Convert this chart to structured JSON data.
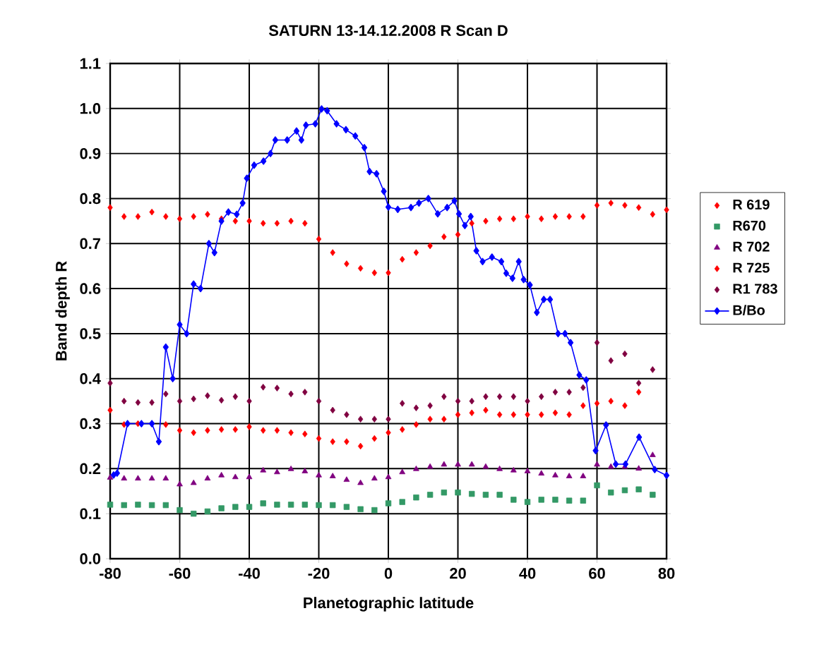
{
  "chart_data": {
    "type": "scatter",
    "title": "SATURN 13-14.12.2008 R Scan D",
    "xlabel": "Planetographic latitude",
    "ylabel": "Band depth  R",
    "x": [
      -80,
      -76,
      -72,
      -68,
      -64,
      -60,
      -56,
      -52,
      -48,
      -44,
      -40,
      -36,
      -32,
      -28,
      -24,
      -20,
      -16,
      -12,
      -8,
      -4,
      0,
      4,
      8,
      12,
      16,
      20,
      24,
      28,
      32,
      36,
      40,
      44,
      48,
      52,
      56,
      60,
      64,
      68,
      72,
      76,
      80
    ],
    "series": [
      {
        "name": "R 619",
        "color": "#ff0000",
        "marker": "diamond",
        "values": [
          0.78,
          0.76,
          0.76,
          0.77,
          0.76,
          0.755,
          0.76,
          0.765,
          0.755,
          0.75,
          0.75,
          0.745,
          0.745,
          0.75,
          0.745,
          0.71,
          0.68,
          0.655,
          0.645,
          0.635,
          0.635,
          0.665,
          0.68,
          0.695,
          0.715,
          0.72,
          0.745,
          0.75,
          0.755,
          0.755,
          0.76,
          0.755,
          0.76,
          0.76,
          0.76,
          0.785,
          0.79,
          0.785,
          0.78,
          0.765,
          0.775
        ]
      },
      {
        "name": "R670",
        "color": "#339966",
        "marker": "square",
        "values": [
          0.12,
          0.119,
          0.12,
          0.119,
          0.119,
          0.108,
          0.1,
          0.105,
          0.112,
          0.115,
          0.115,
          0.123,
          0.12,
          0.12,
          0.12,
          0.119,
          0.119,
          0.115,
          0.11,
          0.108,
          0.123,
          0.126,
          0.136,
          0.142,
          0.147,
          0.147,
          0.144,
          0.142,
          0.142,
          0.131,
          0.126,
          0.131,
          0.131,
          0.129,
          0.129,
          0.163,
          0.147,
          0.152,
          0.154,
          0.142,
          null
        ]
      },
      {
        "name": "R 702",
        "color": "#800080",
        "marker": "triangle",
        "values": [
          0.18,
          0.178,
          0.178,
          0.178,
          0.178,
          0.165,
          0.168,
          0.178,
          0.185,
          0.181,
          0.181,
          0.196,
          0.192,
          0.199,
          0.194,
          0.185,
          0.183,
          0.175,
          0.168,
          0.178,
          0.181,
          0.192,
          0.199,
          0.204,
          0.209,
          0.209,
          0.209,
          0.204,
          0.199,
          0.196,
          0.194,
          0.189,
          0.185,
          0.183,
          0.183,
          0.209,
          0.204,
          0.204,
          0.2,
          0.23,
          null
        ]
      },
      {
        "name": "R 725",
        "color": "#ff0000",
        "marker": "diamond",
        "values": [
          0.33,
          0.298,
          0.3,
          null,
          0.298,
          0.285,
          0.28,
          0.285,
          0.287,
          0.287,
          0.293,
          0.285,
          0.285,
          0.28,
          0.277,
          0.267,
          0.26,
          0.26,
          0.25,
          0.267,
          0.28,
          0.287,
          0.298,
          0.31,
          0.31,
          0.32,
          0.324,
          0.33,
          0.32,
          0.32,
          0.32,
          0.32,
          0.324,
          0.32,
          0.34,
          0.345,
          0.35,
          0.34,
          0.37,
          null,
          null
        ]
      },
      {
        "name": "R1 783",
        "color": "#800040",
        "marker": "diamond",
        "values": [
          0.39,
          0.35,
          0.347,
          0.347,
          0.366,
          0.35,
          0.355,
          0.362,
          0.352,
          0.36,
          0.35,
          0.381,
          0.379,
          0.366,
          0.37,
          0.35,
          0.33,
          0.32,
          0.31,
          0.31,
          0.31,
          0.345,
          0.335,
          0.34,
          0.36,
          0.35,
          0.35,
          0.36,
          0.36,
          0.36,
          0.35,
          0.36,
          0.37,
          0.37,
          0.38,
          0.48,
          0.44,
          0.455,
          0.39,
          0.42,
          null
        ]
      },
      {
        "name": "B/Bo",
        "type": "line",
        "color": "#0000ff",
        "marker": "diamond",
        "x": [
          -79,
          -78,
          -75,
          -71,
          -68,
          -66,
          -64,
          -62,
          -60,
          -58,
          -56,
          -54,
          -51.6,
          -50,
          -48,
          -46,
          -43.6,
          -41.9,
          -40.7,
          -38.6,
          -35.9,
          -33.9,
          -32.5,
          -29.1,
          -26.4,
          -25,
          -23.7,
          -21,
          -19.2,
          -17.6,
          -14.9,
          -12.2,
          -9.5,
          -6.9,
          -5.4,
          -3.4,
          -1.3,
          0,
          2.7,
          6.5,
          8.8,
          11.5,
          14.2,
          16.9,
          19,
          20.3,
          22,
          23.7,
          25.3,
          27.1,
          29.8,
          32.5,
          33.9,
          35.7,
          37.5,
          38.9,
          40.7,
          42.7,
          44.7,
          46.5,
          48.8,
          50.8,
          52.4,
          54.9,
          56.9,
          59.6,
          62.6,
          65.4,
          68.2,
          72.1,
          76.6,
          80
        ],
        "values": [
          0.186,
          0.19,
          0.3,
          0.3,
          0.3,
          0.26,
          0.47,
          0.4,
          0.52,
          0.5,
          0.61,
          0.6,
          0.7,
          0.68,
          0.75,
          0.77,
          0.765,
          0.79,
          0.845,
          0.874,
          0.883,
          0.9,
          0.93,
          0.93,
          0.95,
          0.93,
          0.963,
          0.966,
          0.999,
          0.995,
          0.966,
          0.953,
          0.939,
          0.913,
          0.86,
          0.855,
          0.816,
          0.781,
          0.776,
          0.78,
          0.79,
          0.8,
          0.766,
          0.78,
          0.795,
          0.766,
          0.74,
          0.76,
          0.684,
          0.66,
          0.67,
          0.66,
          0.634,
          0.623,
          0.66,
          0.62,
          0.608,
          0.547,
          0.576,
          0.576,
          0.5,
          0.5,
          0.48,
          0.408,
          0.397,
          0.24,
          0.297,
          0.21,
          0.21,
          0.27,
          0.198,
          0.185
        ]
      }
    ],
    "xlim": [
      -80,
      80
    ],
    "ylim": [
      0,
      1.1
    ],
    "xticks": [
      -80,
      -60,
      -40,
      -20,
      0,
      20,
      40,
      60,
      80
    ],
    "yticks": [
      {
        "value": 0,
        "label": "0.0"
      },
      {
        "value": 0.1,
        "label": "0.1"
      },
      {
        "value": 0.2,
        "label": "0.2"
      },
      {
        "value": 0.3,
        "label": "0.3"
      },
      {
        "value": 0.4,
        "label": "0.4"
      },
      {
        "value": 0.5,
        "label": "0.5"
      },
      {
        "value": 0.6,
        "label": "0.6"
      },
      {
        "value": 0.7,
        "label": "0.7"
      },
      {
        "value": 0.8,
        "label": "0.8"
      },
      {
        "value": 0.9,
        "label": "0.9"
      },
      {
        "value": 1.0,
        "label": "1.0"
      },
      {
        "value": 1.1,
        "label": "1.1"
      }
    ],
    "grid": true,
    "legend": "right"
  }
}
